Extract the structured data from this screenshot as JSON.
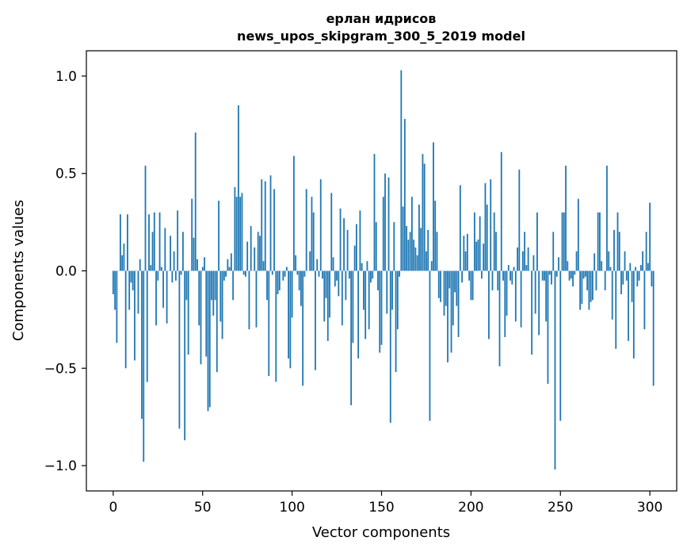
{
  "chart_data": {
    "type": "bar",
    "title": "ерлан идрисов",
    "subtitle": "news_upos_skipgram_300_5_2019 model",
    "xlabel": "Vector components",
    "ylabel": "Components values",
    "xlim": [
      -15,
      315
    ],
    "ylim": [
      -1.13,
      1.13
    ],
    "xticks": [
      0,
      50,
      100,
      150,
      200,
      250,
      300
    ],
    "xtick_labels": [
      "0",
      "50",
      "100",
      "150",
      "200",
      "250",
      "300"
    ],
    "yticks": [
      -1.0,
      -0.5,
      0.0,
      0.5,
      1.0
    ],
    "ytick_labels": [
      "−1.0",
      "−0.5",
      "0.0",
      "0.5",
      "1.0"
    ],
    "bar_color": "#1f77b4",
    "values": [
      -0.12,
      -0.2,
      -0.37,
      0.0,
      0.29,
      0.08,
      0.14,
      -0.5,
      0.29,
      -0.2,
      -0.06,
      -0.1,
      -0.46,
      0.0,
      -0.22,
      0.06,
      -0.76,
      -0.98,
      0.54,
      -0.57,
      0.29,
      0.03,
      0.2,
      0.3,
      -0.28,
      -0.05,
      0.3,
      0.02,
      -0.19,
      0.22,
      -0.27,
      0.0,
      0.18,
      -0.06,
      0.1,
      -0.05,
      0.31,
      -0.81,
      -0.02,
      0.2,
      -0.87,
      -0.15,
      -0.43,
      0.0,
      0.37,
      0.17,
      0.71,
      0.06,
      -0.28,
      -0.48,
      0.02,
      0.07,
      -0.44,
      -0.72,
      -0.7,
      -0.15,
      -0.23,
      -0.15,
      -0.52,
      0.36,
      -0.26,
      -0.35,
      -0.05,
      -0.03,
      0.06,
      0.02,
      0.09,
      -0.15,
      0.43,
      0.38,
      0.85,
      0.38,
      0.4,
      -0.02,
      -0.03,
      0.15,
      -0.3,
      0.23,
      0.0,
      0.12,
      -0.29,
      0.2,
      0.18,
      0.47,
      0.05,
      0.46,
      -0.15,
      -0.54,
      0.49,
      -0.02,
      0.42,
      -0.57,
      -0.12,
      -0.1,
      0.0,
      -0.05,
      -0.03,
      0.02,
      -0.45,
      -0.5,
      -0.24,
      0.59,
      0.08,
      -0.02,
      -0.1,
      -0.18,
      -0.59,
      -0.03,
      0.42,
      0.0,
      0.1,
      0.38,
      0.3,
      -0.51,
      0.06,
      -0.03,
      0.47,
      -0.04,
      -0.26,
      -0.14,
      -0.36,
      -0.24,
      0.4,
      0.07,
      -0.08,
      -0.05,
      -0.13,
      0.32,
      -0.28,
      0.27,
      -0.15,
      0.21,
      -0.04,
      -0.69,
      -0.37,
      0.13,
      0.24,
      -0.45,
      0.31,
      0.04,
      -0.2,
      -0.35,
      0.05,
      -0.3,
      -0.06,
      -0.04,
      0.6,
      0.25,
      -0.1,
      -0.42,
      -0.38,
      0.38,
      0.5,
      -0.22,
      0.48,
      -0.78,
      -0.2,
      0.25,
      -0.52,
      -0.3,
      -0.03,
      1.03,
      0.33,
      0.78,
      0.23,
      0.16,
      0.2,
      0.38,
      0.16,
      0.12,
      0.08,
      0.34,
      0.22,
      0.6,
      0.55,
      0.1,
      0.21,
      -0.77,
      0.05,
      0.66,
      0.36,
      0.2,
      -0.14,
      -0.16,
      0.0,
      -0.23,
      -0.18,
      -0.47,
      -0.09,
      -0.42,
      -0.28,
      -0.11,
      -0.18,
      -0.34,
      0.44,
      -0.06,
      0.18,
      0.1,
      0.19,
      -0.05,
      -0.15,
      -0.15,
      0.3,
      0.15,
      0.16,
      0.28,
      -0.04,
      0.14,
      0.45,
      0.34,
      -0.35,
      0.47,
      -0.1,
      0.3,
      0.2,
      -0.1,
      -0.49,
      0.61,
      -0.05,
      -0.34,
      -0.23,
      0.03,
      -0.05,
      -0.07,
      0.02,
      -0.26,
      0.12,
      0.52,
      -0.29,
      0.1,
      0.2,
      0.03,
      0.12,
      0.0,
      -0.43,
      0.08,
      -0.22,
      0.3,
      -0.33,
      0.0,
      -0.05,
      -0.05,
      -0.26,
      -0.58,
      -0.02,
      -0.07,
      0.2,
      -1.02,
      -0.03,
      0.07,
      -0.77,
      0.3,
      0.3,
      0.54,
      0.05,
      -0.05,
      -0.04,
      -0.08,
      -0.02,
      0.1,
      0.37,
      -0.2,
      -0.17,
      -0.04,
      -0.03,
      -0.1,
      -0.2,
      -0.16,
      -0.15,
      0.09,
      -0.1,
      0.3,
      0.3,
      0.05,
      0.0,
      -0.1,
      0.54,
      0.1,
      0.02,
      -0.25,
      0.21,
      -0.4,
      0.3,
      0.2,
      -0.12,
      -0.07,
      0.1,
      -0.05,
      -0.36,
      0.04,
      -0.16,
      -0.45,
      0.02,
      -0.08,
      -0.05,
      0.03,
      0.1,
      -0.3,
      0.2,
      0.04,
      0.35,
      -0.08,
      -0.59
    ]
  }
}
